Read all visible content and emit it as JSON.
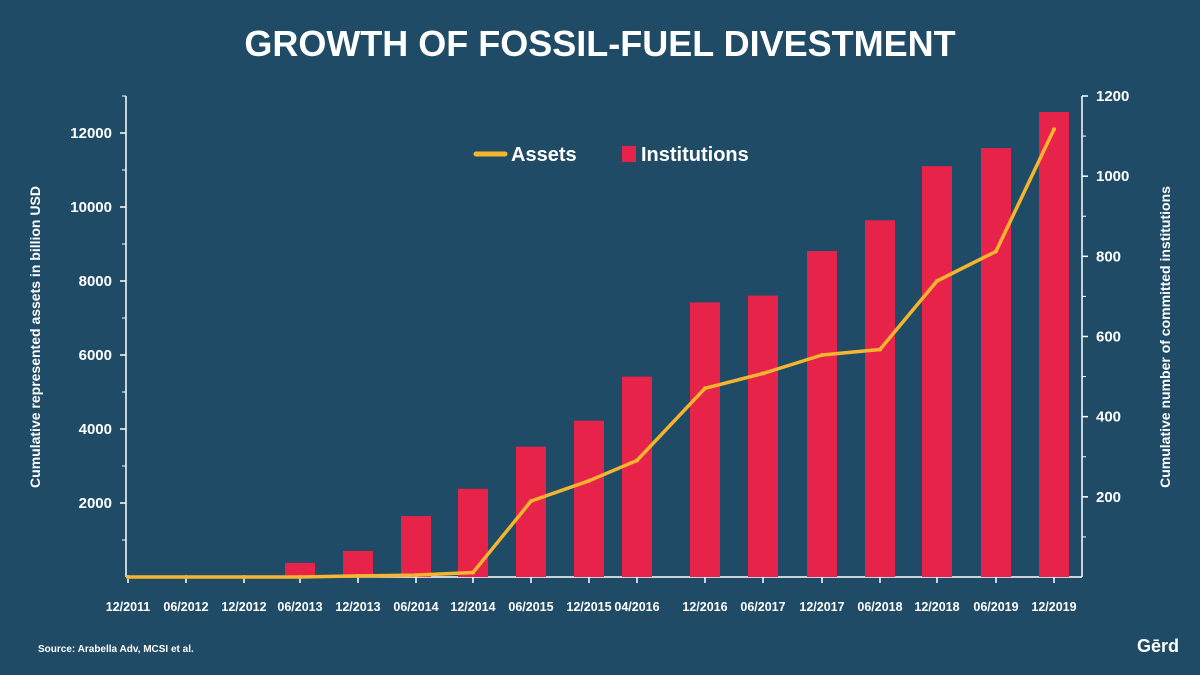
{
  "chart_data": {
    "type": "bar",
    "title": "GROWTH OF FOSSIL-FUEL DIVESTMENT",
    "categories": [
      "12/2011",
      "06/2012",
      "12/2012",
      "06/2013",
      "12/2013",
      "06/2014",
      "12/2014",
      "06/2015",
      "12/2015",
      "04/2016",
      "12/2016",
      "06/2017",
      "12/2017",
      "06/2018",
      "12/2018",
      "06/2019",
      "12/2019"
    ],
    "series": [
      {
        "name": "Institutions",
        "type": "bar",
        "axis": "right",
        "color": "#e8234a",
        "values": [
          0,
          0,
          0,
          35,
          65,
          152,
          220,
          325,
          390,
          500,
          685,
          702,
          813,
          890,
          1025,
          1070,
          1160
        ]
      },
      {
        "name": "Assets",
        "type": "line",
        "axis": "left",
        "color": "#f5b52e",
        "values": [
          0,
          0,
          0,
          0,
          30,
          50,
          120,
          2050,
          2600,
          3150,
          5100,
          5500,
          6000,
          6150,
          8000,
          8800,
          12100
        ]
      }
    ],
    "yleft": {
      "label": "Cumulative represented assets in billion USD",
      "ticks": [
        2000,
        4000,
        6000,
        8000,
        10000,
        12000
      ],
      "ylim": [
        0,
        13000
      ]
    },
    "yright": {
      "label": "Cumulative number of committed institutions",
      "ticks": [
        200,
        400,
        600,
        800,
        1000,
        1200
      ],
      "ylim": [
        0,
        1200
      ]
    },
    "legend": {
      "position": "top-center",
      "entries": [
        "Assets",
        "Institutions"
      ]
    },
    "grid": false
  },
  "footer": {
    "source": "Source: Arabella Adv, MCSI et al.",
    "logo": "Gērd"
  }
}
